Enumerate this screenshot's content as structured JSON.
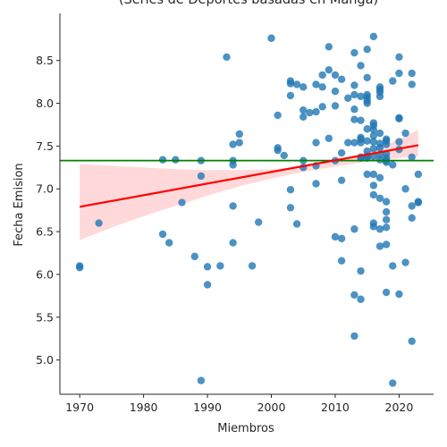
{
  "chart_data": {
    "type": "scatter",
    "title": "(Series de Deportes basadas en Manga)",
    "xlabel": "Miembros",
    "ylabel": "Fecha Emision",
    "xlim": [
      1966.9,
      2025.4
    ],
    "ylim": [
      4.6,
      9.05
    ],
    "xticks": [
      1970,
      1980,
      1990,
      2000,
      2010,
      2020
    ],
    "yticks": [
      5.0,
      5.5,
      6.0,
      6.5,
      7.0,
      7.5,
      8.0,
      8.5
    ],
    "xtick_labels": [
      "1970",
      "1980",
      "1990",
      "2000",
      "2010",
      "2020"
    ],
    "ytick_labels": [
      "5.0",
      "5.5",
      "6.0",
      "6.5",
      "7.0",
      "7.5",
      "8.0",
      "8.5"
    ],
    "grid": false,
    "colors": {
      "points": "#1f77b4",
      "regression": "#ff0000",
      "confidence_band": "#ff0000",
      "mean_line": "#008000",
      "axes": "#262626"
    },
    "mean_line_y": 7.33,
    "regression": {
      "x": [
        1970,
        2023
      ],
      "y": [
        6.79,
        7.51
      ]
    },
    "confidence_band": {
      "x": [
        1970,
        1975,
        1980,
        1985,
        1990,
        1995,
        2000,
        2005,
        2010,
        2015,
        2020,
        2023
      ],
      "lower": [
        6.4,
        6.55,
        6.68,
        6.8,
        6.92,
        7.03,
        7.12,
        7.2,
        7.26,
        7.32,
        7.36,
        7.38
      ],
      "upper": [
        7.29,
        7.27,
        7.25,
        7.23,
        7.22,
        7.22,
        7.23,
        7.26,
        7.33,
        7.43,
        7.58,
        7.69
      ]
    },
    "series": [
      {
        "x": [
          1970,
          1970,
          1973,
          1983,
          1983,
          1984,
          1985,
          1986,
          1988,
          1989,
          1989,
          1989,
          1990,
          1990,
          1992,
          1993,
          1994,
          1994,
          1994,
          1994,
          1994,
          1995,
          1995,
          1997,
          1998,
          2000,
          2001,
          2001,
          2001,
          2002,
          2003,
          2003,
          2003,
          2003,
          2003,
          2004,
          2004,
          2005,
          2005,
          2005,
          2005,
          2005,
          2006,
          2007,
          2007,
          2007,
          2007,
          2007,
          2008,
          2008,
          2008,
          2009,
          2009,
          2009,
          2010,
          2010,
          2010,
          2010,
          2010,
          2011,
          2011,
          2011,
          2011,
          2011,
          2012,
          2012,
          2013,
          2013,
          2013,
          2013,
          2013,
          2013,
          2013,
          2013,
          2013,
          2014,
          2014,
          2014,
          2014,
          2014,
          2014,
          2014,
          2014,
          2014,
          2014,
          2015,
          2015,
          2015,
          2015,
          2015,
          2015,
          2015,
          2015,
          2015,
          2015,
          2015,
          2015,
          2016,
          2016,
          2016,
          2016,
          2016,
          2016,
          2016,
          2016,
          2016,
          2016,
          2016,
          2016,
          2016,
          2017,
          2017,
          2017,
          2017,
          2017,
          2017,
          2017,
          2017,
          2017,
          2017,
          2017,
          2017,
          2017,
          2018,
          2018,
          2018,
          2018,
          2018,
          2018,
          2018,
          2018,
          2018,
          2018,
          2018,
          2018,
          2018,
          2019,
          2019,
          2019,
          2019,
          2020,
          2020,
          2020,
          2020,
          2020,
          2020,
          2020,
          2021,
          2021,
          2021,
          2022,
          2022,
          2022,
          2022,
          2022,
          2022,
          2023,
          2023,
          2023
        ],
        "y": [
          6.1,
          6.08,
          6.6,
          7.34,
          6.47,
          6.37,
          7.34,
          6.84,
          6.21,
          7.33,
          7.15,
          4.76,
          6.09,
          5.88,
          6.1,
          8.54,
          7.52,
          7.33,
          7.28,
          6.8,
          6.37,
          7.64,
          7.54,
          6.1,
          6.61,
          8.76,
          7.48,
          7.45,
          7.86,
          7.39,
          8.26,
          8.23,
          8.09,
          6.99,
          6.78,
          8.22,
          6.59,
          8.19,
          7.92,
          7.84,
          7.33,
          7.25,
          7.89,
          8.22,
          7.9,
          7.54,
          7.27,
          7.06,
          8.33,
          8.19,
          7.96,
          8.66,
          8.39,
          7.59,
          8.33,
          8.14,
          7.97,
          7.33,
          6.44,
          8.28,
          7.42,
          7.1,
          6.42,
          6.16,
          8.06,
          7.54,
          8.59,
          8.21,
          8.1,
          7.93,
          7.81,
          7.54,
          6.53,
          5.76,
          5.28,
          8.44,
          8.08,
          7.8,
          7.6,
          7.58,
          7.54,
          7.37,
          7.36,
          6.04,
          5.71,
          8.63,
          8.3,
          8.1,
          8.07,
          8.03,
          8.0,
          7.7,
          7.56,
          7.44,
          7.38,
          7.36,
          7.17,
          8.78,
          7.77,
          7.74,
          7.69,
          7.62,
          7.55,
          7.47,
          7.38,
          7.17,
          7.04,
          6.93,
          6.6,
          6.56,
          8.19,
          8.16,
          8.13,
          8.08,
          7.65,
          7.53,
          7.48,
          7.4,
          7.34,
          7.13,
          6.89,
          6.53,
          6.33,
          7.58,
          7.56,
          7.52,
          7.41,
          7.36,
          7.33,
          7.31,
          6.85,
          6.73,
          6.64,
          6.55,
          6.35,
          5.79,
          8.26,
          7.28,
          6.1,
          4.73,
          8.54,
          8.35,
          7.83,
          7.82,
          7.55,
          7.46,
          5.77,
          7.65,
          7.0,
          6.14,
          8.35,
          8.22,
          7.37,
          6.8,
          6.66,
          5.22,
          7.17,
          6.84,
          6.85
        ]
      }
    ]
  }
}
